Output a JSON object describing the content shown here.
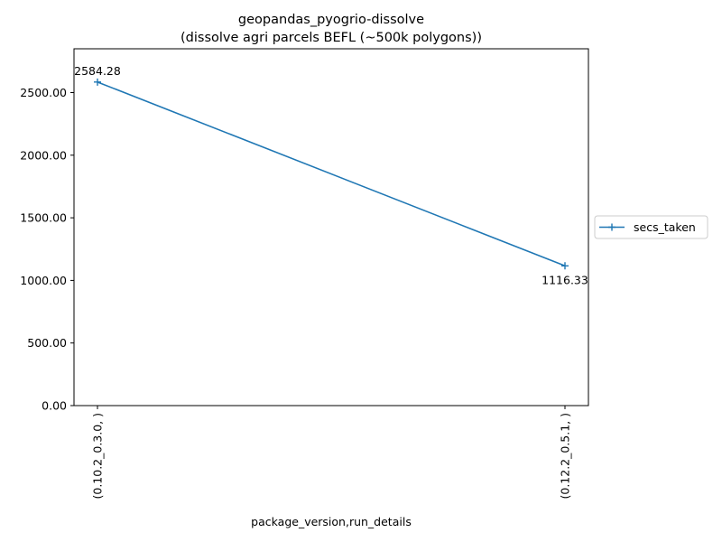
{
  "chart_data": {
    "type": "line",
    "title": "geopandas_pyogrio-dissolve",
    "subtitle": "(dissolve agri parcels BEFL (~500k polygons))",
    "xlabel": "package_version,run_details",
    "ylabel": "",
    "categories": [
      "(0.10.2_0.3.0, )",
      "(0.12.2_0.5.1, )"
    ],
    "series": [
      {
        "name": "secs_taken",
        "values": [
          2584.28,
          1116.33
        ],
        "color": "#1f77b4",
        "marker": "plus"
      }
    ],
    "data_labels": [
      "2584.28",
      "1116.33"
    ],
    "ylim": [
      0,
      2850
    ],
    "yticks": [
      0,
      500,
      1000,
      1500,
      2000,
      2500
    ],
    "ytick_labels": [
      "0.00",
      "500.00",
      "1000.00",
      "1500.00",
      "2000.00",
      "2500.00"
    ],
    "grid": false,
    "legend_position": "right-outside"
  }
}
